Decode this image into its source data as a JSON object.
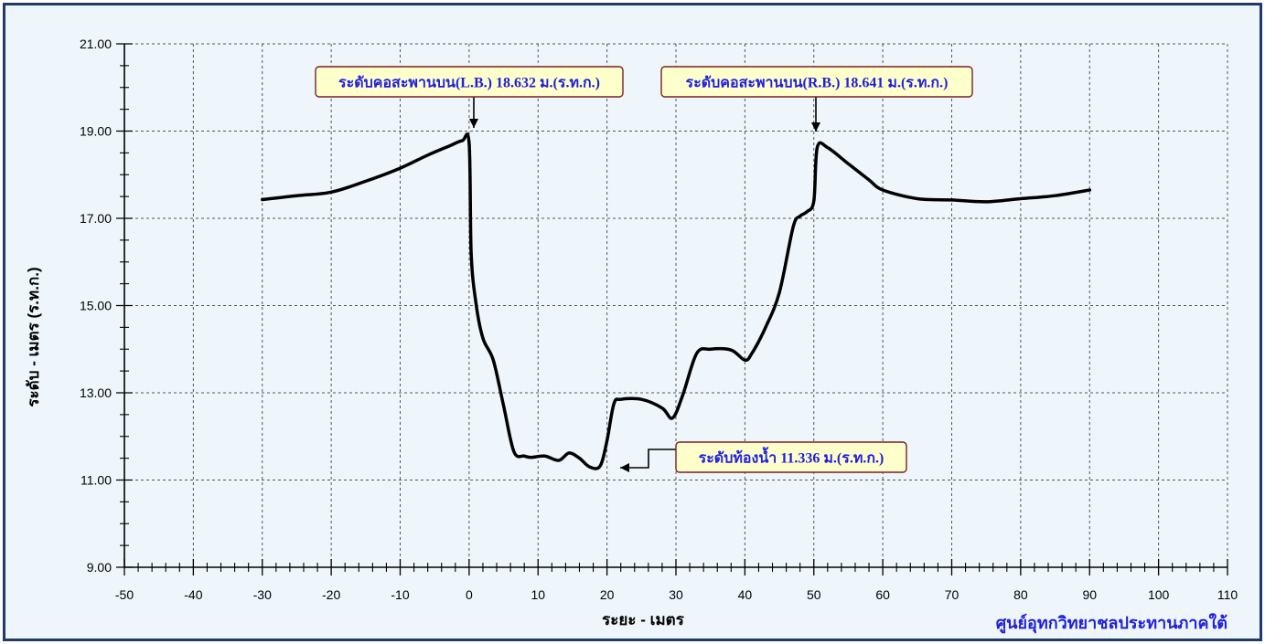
{
  "chart_data": {
    "type": "line",
    "title": "",
    "xlabel": "ระยะ - เมตร",
    "ylabel": "ระดับ - เมตร (ร.ท.ก.)",
    "xlim": [
      -50,
      110
    ],
    "ylim": [
      9,
      21
    ],
    "x_ticks": [
      -50,
      -40,
      -30,
      -20,
      -10,
      0,
      10,
      20,
      30,
      40,
      50,
      60,
      70,
      80,
      90,
      100,
      110
    ],
    "y_ticks": [
      "9.00",
      "11.00",
      "13.00",
      "15.00",
      "17.00",
      "19.00",
      "21.00"
    ],
    "grid": true,
    "series": [
      {
        "color": "#000000",
        "x": [
          -30,
          -25,
          -20,
          -15,
          -10,
          -6,
          -3,
          -1,
          0,
          0.3,
          1,
          2,
          3.5,
          5,
          6.5,
          8,
          9,
          11,
          13,
          14.5,
          16,
          17.5,
          19,
          20,
          21,
          22,
          25,
          28,
          29.5,
          31,
          33,
          35,
          38,
          40,
          41,
          43,
          45,
          47,
          48,
          49,
          50,
          50.5,
          52,
          55,
          58,
          60,
          65,
          70,
          75,
          80,
          85,
          90
        ],
        "y": [
          17.43,
          17.52,
          17.6,
          17.85,
          18.15,
          18.45,
          18.65,
          18.78,
          18.72,
          16.2,
          15.05,
          14.25,
          13.75,
          12.7,
          11.65,
          11.55,
          11.52,
          11.55,
          11.45,
          11.62,
          11.5,
          11.3,
          11.32,
          11.9,
          12.75,
          12.85,
          12.85,
          12.65,
          12.42,
          12.95,
          13.9,
          14.0,
          13.98,
          13.75,
          13.9,
          14.5,
          15.3,
          16.8,
          17.05,
          17.15,
          17.4,
          18.63,
          18.62,
          18.25,
          17.88,
          17.65,
          17.45,
          17.42,
          17.38,
          17.45,
          17.52,
          17.65
        ]
      }
    ],
    "annotations": [
      {
        "text": "ระดับคอสะพานบน(L.B.) 18.632 ม.(ร.ท.ก.)",
        "x": 0,
        "y": 18.632
      },
      {
        "text": "ระดับคอสะพานบน(R.B.) 18.641 ม.(ร.ท.ก.)",
        "x": 50,
        "y": 18.641
      },
      {
        "text": "ระดับท้องน้ำ 11.336 ม.(ร.ท.ก.)",
        "x": 20,
        "y": 11.336
      }
    ]
  },
  "credit": "ศูนย์อุทกวิทยาชลประทานภาคใต้",
  "colors": {
    "frame_border": "#1f3a6b",
    "background": "#eef6fb",
    "callout_fill": "#ffffcc",
    "callout_border": "#7a1f1f",
    "callout_text": "#1e1ee0"
  }
}
